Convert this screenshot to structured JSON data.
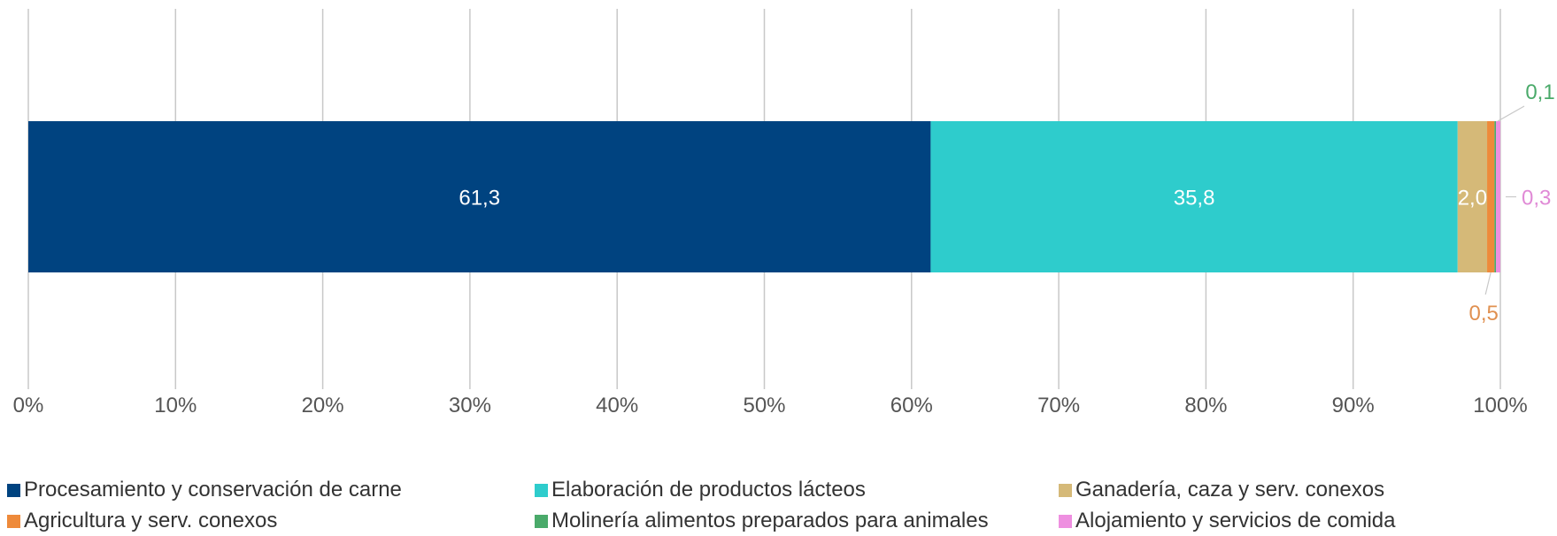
{
  "chart_data": {
    "type": "bar",
    "orientation": "horizontal",
    "stacked": true,
    "normalized_percent": true,
    "title": "",
    "xlabel": "",
    "ylabel": "",
    "xlim": [
      0,
      100
    ],
    "grid": true,
    "legend_position": "bottom",
    "x_tick_labels": [
      "0%",
      "10%",
      "20%",
      "30%",
      "40%",
      "50%",
      "60%",
      "70%",
      "80%",
      "90%",
      "100%"
    ],
    "series": [
      {
        "name": "Procesamiento y conservación de carne",
        "value": 61.3,
        "label": "61,3",
        "color": "#004380",
        "label_color": "#ffffff",
        "label_pos": "inside"
      },
      {
        "name": "Elaboración de productos lácteos",
        "value": 35.8,
        "label": "35,8",
        "color": "#2ecccc",
        "label_color": "#ffffff",
        "label_pos": "inside"
      },
      {
        "name": "Ganadería, caza y serv. conexos",
        "value": 2.0,
        "label": "2,0",
        "color": "#d5b978",
        "label_color": "#ffffff",
        "label_pos": "inside"
      },
      {
        "name": "Agricultura y serv. conexos",
        "value": 0.5,
        "label": "0,5",
        "color": "#ee8a3a",
        "label_color": "#e09050",
        "label_pos": "below"
      },
      {
        "name": "Molinería alimentos preparados para animales",
        "value": 0.1,
        "label": "0,1",
        "color": "#4aaa6a",
        "label_color": "#4aaa6a",
        "label_pos": "above"
      },
      {
        "name": "Alojamiento y servicios de comida",
        "value": 0.3,
        "label": "0,3",
        "color": "#ee8fe0",
        "label_color": "#e08ad6",
        "label_pos": "right"
      }
    ]
  }
}
